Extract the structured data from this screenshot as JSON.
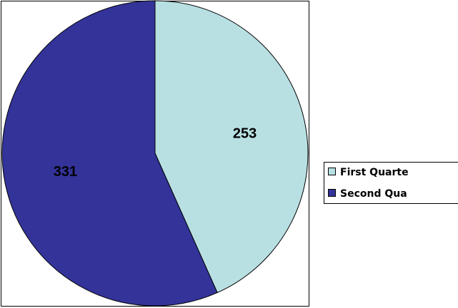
{
  "chart_data": {
    "type": "pie",
    "categories": [
      "First Quarte",
      "Second Qua"
    ],
    "values": [
      253,
      331
    ],
    "colors": [
      "#b8e0e3",
      "#333399"
    ],
    "legend": "right"
  }
}
